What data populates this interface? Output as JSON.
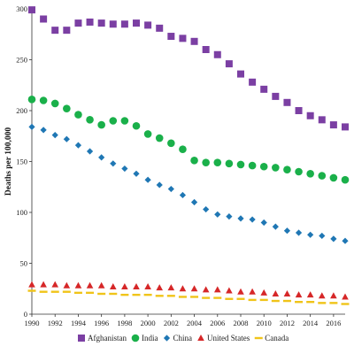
{
  "chart_data": {
    "type": "scatter",
    "ylabel": "Deaths per 100,000",
    "xlabel": "",
    "xlim": [
      1990,
      2017
    ],
    "ylim": [
      0,
      300
    ],
    "x_ticks": [
      1990,
      1992,
      1994,
      1996,
      1998,
      2000,
      2002,
      2004,
      2006,
      2008,
      2010,
      2012,
      2014,
      2016
    ],
    "y_ticks": [
      0,
      50,
      100,
      150,
      200,
      250,
      300
    ],
    "x": [
      1990,
      1991,
      1992,
      1993,
      1994,
      1995,
      1996,
      1997,
      1998,
      1999,
      2000,
      2001,
      2002,
      2003,
      2004,
      2005,
      2006,
      2007,
      2008,
      2009,
      2010,
      2011,
      2012,
      2013,
      2014,
      2015,
      2016,
      2017
    ],
    "grid": false,
    "legend_position": "bottom",
    "series": [
      {
        "name": "Afghanistan",
        "marker": "square",
        "color": "#7b3fa3",
        "values": [
          299,
          290,
          279,
          279,
          286,
          287,
          286,
          285,
          285,
          286,
          284,
          281,
          273,
          271,
          268,
          260,
          255,
          246,
          236,
          228,
          221,
          214,
          208,
          200,
          195,
          191,
          186,
          184
        ]
      },
      {
        "name": "India",
        "marker": "circle",
        "color": "#1ab04a",
        "values": [
          211,
          210,
          207,
          202,
          196,
          191,
          186,
          190,
          190,
          185,
          177,
          173,
          168,
          162,
          151,
          149,
          149,
          148,
          147,
          146,
          145,
          144,
          142,
          140,
          138,
          136,
          134,
          132
        ]
      },
      {
        "name": "China",
        "marker": "diamond",
        "color": "#1f77b4",
        "values": [
          184,
          181,
          176,
          172,
          166,
          160,
          154,
          148,
          143,
          138,
          132,
          127,
          123,
          117,
          110,
          103,
          98,
          96,
          94,
          93,
          90,
          86,
          82,
          80,
          78,
          77,
          74,
          72
        ]
      },
      {
        "name": "United States",
        "marker": "triangle",
        "color": "#d62728",
        "values": [
          29,
          29,
          29,
          28,
          28,
          28,
          28,
          27,
          27,
          27,
          27,
          26,
          26,
          25,
          25,
          24,
          24,
          23,
          22,
          22,
          21,
          20,
          20,
          19,
          19,
          18,
          18,
          17
        ]
      },
      {
        "name": "Canada",
        "marker": "dash",
        "color": "#f0c419",
        "values": [
          23,
          22,
          22,
          22,
          21,
          21,
          20,
          20,
          19,
          19,
          19,
          18,
          18,
          17,
          17,
          16,
          16,
          15,
          15,
          14,
          14,
          13,
          13,
          12,
          12,
          11,
          11,
          10
        ]
      }
    ]
  }
}
